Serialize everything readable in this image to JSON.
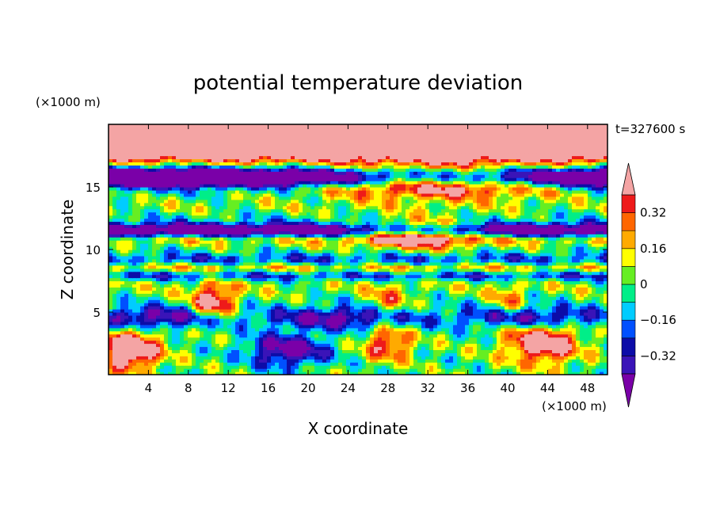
{
  "chart_data": {
    "type": "heatmap",
    "title": "potential temperature deviation",
    "time_label": "t=327600 s",
    "xlabel": "X coordinate",
    "ylabel": "Z coordinate",
    "x_unit": "(×1000 m)",
    "y_unit": "(×1000 m)",
    "xlim": [
      0,
      50
    ],
    "ylim": [
      0,
      20
    ],
    "x_ticks": [
      4,
      8,
      12,
      16,
      20,
      24,
      28,
      32,
      36,
      40,
      44,
      48
    ],
    "y_ticks": [
      5,
      10,
      15
    ],
    "colorbar": {
      "levels": [
        -0.4,
        -0.32,
        -0.24,
        -0.16,
        -0.08,
        0,
        0.08,
        0.16,
        0.24,
        0.32,
        0.4
      ],
      "tick_labels": [
        "0.32",
        "0.16",
        "0",
        "−0.16",
        "−0.32"
      ],
      "tick_values": [
        0.32,
        0.16,
        0,
        -0.16,
        -0.32
      ],
      "colors_low_to_high": [
        "#7a00a8",
        "#3a14b8",
        "#0c0ca8",
        "#0050ff",
        "#00ccff",
        "#00ee88",
        "#66ee22",
        "#ffff00",
        "#ffaa00",
        "#ff6600",
        "#ee1a1a",
        "#f4a4a4"
      ],
      "extend": "both"
    }
  }
}
